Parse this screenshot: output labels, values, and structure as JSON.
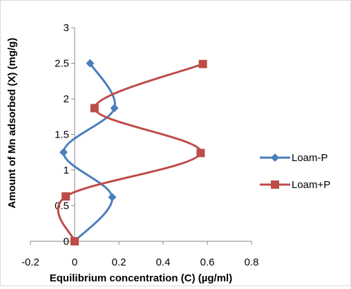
{
  "chart_data": {
    "type": "scatter",
    "title": "",
    "xlabel": "Equilibrium concentration (C) (µg/ml)",
    "ylabel": "Amount of Mn adsorbed (X) (mg/g)",
    "xlim": [
      -0.2,
      0.8
    ],
    "ylim": [
      0,
      3
    ],
    "x_ticks": [
      -0.2,
      0,
      0.2,
      0.4,
      0.6,
      0.8
    ],
    "y_ticks": [
      0,
      0.5,
      1,
      1.5,
      2,
      2.5,
      3
    ],
    "x_tick_labels": [
      "-0.2",
      "0",
      "0.2",
      "0.4",
      "0.6",
      "0.8"
    ],
    "y_tick_labels": [
      "0",
      "0.5",
      "1",
      "1.5",
      "2",
      "2.5",
      "3"
    ],
    "grid": false,
    "legend_position": "right",
    "series": [
      {
        "name": "Loam-P",
        "color": "#4a7ebb",
        "marker": "diamond",
        "smooth": true,
        "points": [
          [
            0.0,
            0.0
          ],
          [
            0.17,
            0.62
          ],
          [
            -0.05,
            1.25
          ],
          [
            0.18,
            1.87
          ],
          [
            0.07,
            2.5
          ]
        ]
      },
      {
        "name": "Loam+P",
        "color": "#be4b48",
        "marker": "square",
        "smooth": true,
        "points": [
          [
            0.0,
            0.0
          ],
          [
            -0.04,
            0.63
          ],
          [
            0.57,
            1.24
          ],
          [
            0.09,
            1.87
          ],
          [
            0.58,
            2.49
          ]
        ]
      }
    ]
  }
}
